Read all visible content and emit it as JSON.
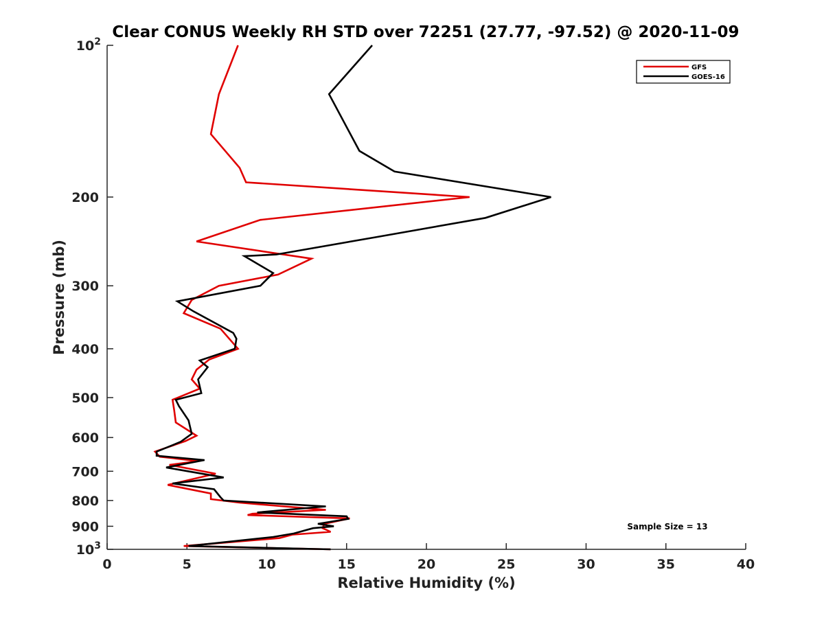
{
  "chart_data": {
    "type": "line",
    "title": "Clear CONUS Weekly RH STD over 72251 (27.77, -97.52) @ 2020-11-09",
    "xlabel": "Relative Humidity (%)",
    "ylabel": "Pressure (mb)",
    "xlim": [
      0,
      40
    ],
    "ylim": [
      100,
      1000
    ],
    "yscale": "log",
    "y_inverted": true,
    "x_ticks": [
      "0",
      "5",
      "10",
      "15",
      "20",
      "25",
      "30",
      "35",
      "40"
    ],
    "y_ticks": [
      {
        "value": 100,
        "base": "10",
        "exp": "2"
      },
      {
        "value": 200,
        "label": "200"
      },
      {
        "value": 300,
        "label": "300"
      },
      {
        "value": 400,
        "label": "400"
      },
      {
        "value": 500,
        "label": "500"
      },
      {
        "value": 600,
        "label": "600"
      },
      {
        "value": 700,
        "label": "700"
      },
      {
        "value": 800,
        "label": "800"
      },
      {
        "value": 900,
        "label": "900"
      },
      {
        "value": 1000,
        "base": "10",
        "exp": "3"
      }
    ],
    "grid": false,
    "legend_position": "top-right",
    "annotation": "Sample Size = 13",
    "series": [
      {
        "name": "GFS",
        "color": "#e00000",
        "points": [
          [
            8.2,
            100
          ],
          [
            7.0,
            125
          ],
          [
            6.5,
            150
          ],
          [
            8.3,
            175
          ],
          [
            8.7,
            187
          ],
          [
            22.7,
            200
          ],
          [
            9.6,
            222
          ],
          [
            5.6,
            245
          ],
          [
            12.8,
            265
          ],
          [
            10.7,
            285
          ],
          [
            7.0,
            300
          ],
          [
            5.3,
            320
          ],
          [
            4.8,
            340
          ],
          [
            7.1,
            365
          ],
          [
            8.2,
            400
          ],
          [
            6.4,
            420
          ],
          [
            5.6,
            440
          ],
          [
            5.3,
            460
          ],
          [
            5.8,
            480
          ],
          [
            4.1,
            505
          ],
          [
            4.2,
            530
          ],
          [
            4.3,
            560
          ],
          [
            5.6,
            595
          ],
          [
            4.9,
            610
          ],
          [
            3.0,
            640
          ],
          [
            3.3,
            655
          ],
          [
            5.7,
            668
          ],
          [
            3.9,
            680
          ],
          [
            6.8,
            708
          ],
          [
            3.8,
            745
          ],
          [
            6.5,
            775
          ],
          [
            6.5,
            795
          ],
          [
            8.3,
            808
          ],
          [
            13.7,
            835
          ],
          [
            9.1,
            850
          ],
          [
            8.8,
            855
          ],
          [
            15.2,
            868
          ],
          [
            13.6,
            890
          ],
          [
            13.5,
            908
          ],
          [
            14.0,
            923
          ],
          [
            11.6,
            935
          ],
          [
            10.8,
            950
          ],
          [
            4.8,
            985
          ],
          [
            14.0,
            1000
          ]
        ]
      },
      {
        "name": "GOES-16",
        "color": "#000000",
        "points": [
          [
            16.6,
            100
          ],
          [
            13.9,
            125
          ],
          [
            15.8,
            162
          ],
          [
            18.0,
            178
          ],
          [
            27.8,
            200
          ],
          [
            23.7,
            220
          ],
          [
            16.9,
            240
          ],
          [
            10.6,
            260
          ],
          [
            8.6,
            262
          ],
          [
            10.4,
            283
          ],
          [
            9.6,
            300
          ],
          [
            4.4,
            322
          ],
          [
            5.4,
            337
          ],
          [
            7.9,
            372
          ],
          [
            8.1,
            382
          ],
          [
            8.0,
            400
          ],
          [
            5.8,
            422
          ],
          [
            6.3,
            435
          ],
          [
            5.7,
            460
          ],
          [
            5.9,
            490
          ],
          [
            4.3,
            505
          ],
          [
            4.5,
            520
          ],
          [
            5.1,
            555
          ],
          [
            5.3,
            590
          ],
          [
            4.6,
            612
          ],
          [
            3.1,
            640
          ],
          [
            3.1,
            652
          ],
          [
            6.1,
            665
          ],
          [
            3.7,
            688
          ],
          [
            7.3,
            720
          ],
          [
            4.1,
            740
          ],
          [
            6.7,
            760
          ],
          [
            7.1,
            788
          ],
          [
            7.3,
            800
          ],
          [
            13.7,
            822
          ],
          [
            9.4,
            845
          ],
          [
            15.0,
            860
          ],
          [
            15.1,
            870
          ],
          [
            13.2,
            890
          ],
          [
            14.2,
            900
          ],
          [
            12.9,
            908
          ],
          [
            11.7,
            930
          ],
          [
            10.4,
            945
          ],
          [
            5.1,
            985
          ],
          [
            14.0,
            1000
          ]
        ]
      }
    ]
  }
}
